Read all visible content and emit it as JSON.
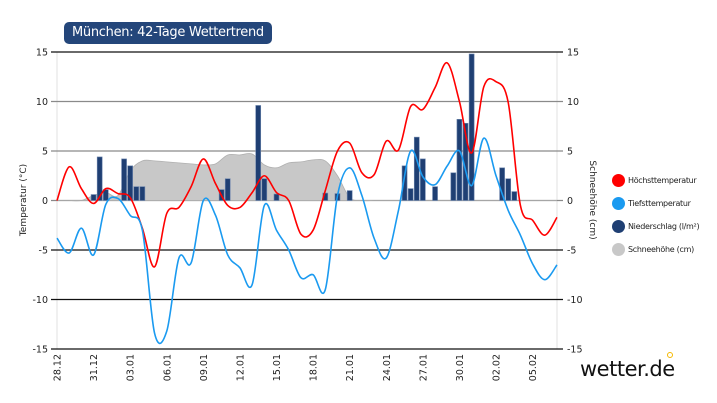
{
  "chart_data": {
    "type": "line",
    "title": "München: 42-Tage Wettertrend",
    "ylabel_left": "Temperatur (°C)",
    "ylabel_right": "Schneehöhe (cm)",
    "ylim": [
      -15,
      15
    ],
    "yticks": [
      15,
      10,
      5,
      0,
      -5,
      -10,
      -15
    ],
    "grid": true,
    "legend_position": "right",
    "x": [
      "28.12",
      "29.12",
      "30.12",
      "31.12",
      "01.01",
      "02.01",
      "03.01",
      "04.01",
      "05.01",
      "06.01",
      "07.01",
      "08.01",
      "09.01",
      "10.01",
      "11.01",
      "12.01",
      "13.01",
      "14.01",
      "15.01",
      "16.01",
      "17.01",
      "18.01",
      "19.01",
      "20.01",
      "21.01",
      "22.01",
      "23.01",
      "24.01",
      "25.01",
      "26.01",
      "27.01",
      "28.01",
      "29.01",
      "30.01",
      "31.01",
      "01.02",
      "02.02",
      "03.02",
      "04.02",
      "05.02",
      "06.02",
      "07.02"
    ],
    "xtick_labels": [
      "28.12",
      "31.12",
      "03.01",
      "06.01",
      "09.01",
      "12.01",
      "15.01",
      "18.01",
      "21.01",
      "24.01",
      "27.01",
      "30.01",
      "02.02",
      "05.02"
    ],
    "series": [
      {
        "name": "Höchsttemperatur",
        "kind": "line",
        "color": "#ff0000",
        "values": [
          0,
          3.4,
          1.2,
          -0.3,
          1.2,
          0.7,
          0.3,
          -2.8,
          -6.7,
          -1.3,
          -0.7,
          1.4,
          4.2,
          1.7,
          -0.5,
          -0.7,
          0.8,
          2.5,
          0.8,
          0,
          -3.4,
          -3,
          1,
          5,
          5.8,
          2.8,
          2.6,
          6,
          5.1,
          9.5,
          9.2,
          11.4,
          13.9,
          10,
          4.8,
          11.5,
          12,
          9.9,
          -0.5,
          -2,
          -3.5,
          -1.7
        ]
      },
      {
        "name": "Tiefsttemperatur",
        "kind": "line",
        "color": "#1a9af0",
        "values": [
          -3.8,
          -5.3,
          -2.8,
          -5.5,
          -0.4,
          0.2,
          -1.5,
          -3,
          -13.4,
          -13.2,
          -5.8,
          -6.3,
          0,
          -1.5,
          -5.5,
          -6.8,
          -8.5,
          -0.5,
          -3,
          -5,
          -7.8,
          -7.5,
          -9,
          0.5,
          3.3,
          0.5,
          -3.8,
          -5.8,
          -1,
          5,
          2.4,
          1.6,
          3.5,
          5,
          1.5,
          6.3,
          2.5,
          -1,
          -3.5,
          -6.4,
          -8,
          -6.5
        ]
      },
      {
        "name": "Niederschlag (l/m²)",
        "kind": "bar",
        "color": "#1f3f73",
        "points": [
          {
            "x": "31.12 00:00",
            "y": 0.6
          },
          {
            "x": "31.12 12:00",
            "y": 4.4
          },
          {
            "x": "01.01 00:00",
            "y": 1.1
          },
          {
            "x": "02.01 12:00",
            "y": 4.2
          },
          {
            "x": "03.01 00:00",
            "y": 3.5
          },
          {
            "x": "03.01 12:00",
            "y": 1.4
          },
          {
            "x": "04.01 00:00",
            "y": 1.4
          },
          {
            "x": "10.01 12:00",
            "y": 1.1
          },
          {
            "x": "11.01 00:00",
            "y": 2.2
          },
          {
            "x": "13.01 12:00",
            "y": 9.6
          },
          {
            "x": "14.01 00:00",
            "y": 2.2
          },
          {
            "x": "15.01 00:00",
            "y": 0.65
          },
          {
            "x": "19.01 00:00",
            "y": 0.75
          },
          {
            "x": "20.01 00:00",
            "y": 0.7
          },
          {
            "x": "21.01 00:00",
            "y": 1.0
          },
          {
            "x": "25.01 12:00",
            "y": 3.5
          },
          {
            "x": "26.01 00:00",
            "y": 1.2
          },
          {
            "x": "26.01 12:00",
            "y": 6.4
          },
          {
            "x": "27.01 00:00",
            "y": 4.2
          },
          {
            "x": "28.01 00:00",
            "y": 1.4
          },
          {
            "x": "29.01 12:00",
            "y": 2.8
          },
          {
            "x": "30.01 00:00",
            "y": 8.2
          },
          {
            "x": "30.01 12:00",
            "y": 7.8
          },
          {
            "x": "31.01 00:00",
            "y": 14.8
          },
          {
            "x": "02.02 12:00",
            "y": 3.3
          },
          {
            "x": "03.02 00:00",
            "y": 2.2
          },
          {
            "x": "03.02 12:00",
            "y": 0.9
          }
        ]
      },
      {
        "name": "Schneehöhe (cm)",
        "kind": "area",
        "color": "#c8c8c8",
        "values": [
          0,
          0,
          0,
          0.5,
          0.8,
          0.5,
          3.0,
          4.0,
          4.0,
          3.9,
          3.8,
          3.7,
          3.6,
          3.7,
          4.6,
          4.6,
          4.7,
          3.6,
          3.3,
          3.8,
          3.9,
          4.1,
          4.0,
          2.5,
          0.3,
          0,
          0,
          0,
          0,
          0,
          0,
          0,
          0,
          0,
          0,
          0,
          0,
          0,
          0,
          0,
          0,
          0
        ]
      }
    ]
  },
  "legend": [
    "Höchsttemperatur",
    "Tiefsttemperatur",
    "Niederschlag (l/m²)",
    "Schneehöhe (cm)"
  ],
  "logo": "wetter.de"
}
